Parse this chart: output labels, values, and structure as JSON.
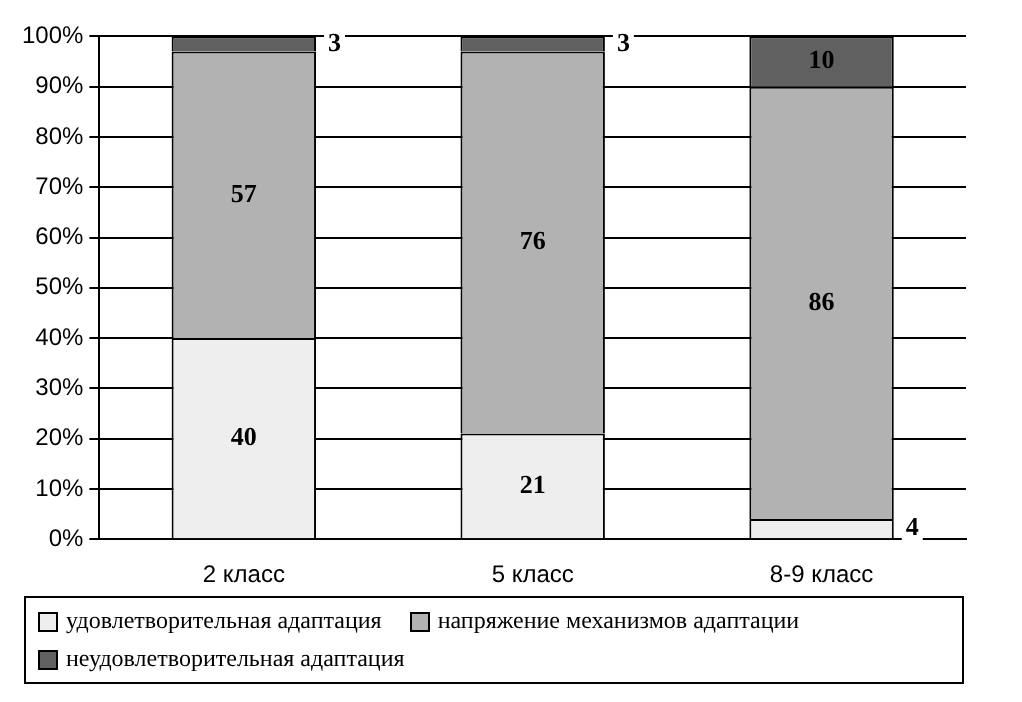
{
  "chart_data": {
    "type": "bar",
    "stacked": true,
    "categories": [
      "2 класс",
      "5 класс",
      "8-9 класс"
    ],
    "series": [
      {
        "name": "удовлетворительная адаптация",
        "color": "#eeeeee",
        "values": [
          40,
          21,
          4
        ]
      },
      {
        "name": "напряжение механизмов адаптации",
        "color": "#b2b2b2",
        "values": [
          57,
          76,
          86
        ]
      },
      {
        "name": "неудовлетворительная адаптация",
        "color": "#606060",
        "values": [
          3,
          3,
          10
        ]
      }
    ],
    "ylim": [
      0,
      100
    ],
    "yticks": [
      {
        "value": 0,
        "label": "0%"
      },
      {
        "value": 10,
        "label": "10%"
      },
      {
        "value": 20,
        "label": "20%"
      },
      {
        "value": 30,
        "label": "30%"
      },
      {
        "value": 40,
        "label": "40%"
      },
      {
        "value": 50,
        "label": "50%"
      },
      {
        "value": 60,
        "label": "60%"
      },
      {
        "value": 70,
        "label": "70%"
      },
      {
        "value": 80,
        "label": "80%"
      },
      {
        "value": 90,
        "label": "90%"
      },
      {
        "value": 100,
        "label": "100%"
      }
    ],
    "grid": "y",
    "legend": "bottom",
    "data_labels": true
  }
}
